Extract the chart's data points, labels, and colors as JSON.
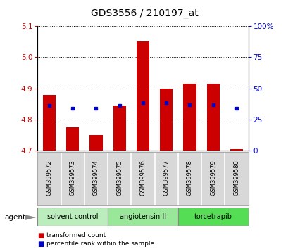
{
  "title": "GDS3556 / 210197_at",
  "samples": [
    "GSM399572",
    "GSM399573",
    "GSM399574",
    "GSM399575",
    "GSM399576",
    "GSM399577",
    "GSM399578",
    "GSM399579",
    "GSM399580"
  ],
  "bar_base": 4.7,
  "bar_tops": [
    4.88,
    4.775,
    4.75,
    4.845,
    5.05,
    4.9,
    4.915,
    4.915,
    4.705
  ],
  "percentile_values": [
    4.845,
    4.835,
    4.835,
    4.845,
    4.855,
    4.855,
    4.848,
    4.848,
    4.835
  ],
  "bar_color": "#cc0000",
  "dot_color": "#0000cc",
  "ylim_left": [
    4.7,
    5.1
  ],
  "ylim_right": [
    0,
    100
  ],
  "yticks_left": [
    4.7,
    4.8,
    4.9,
    5.0,
    5.1
  ],
  "yticks_right": [
    0,
    25,
    50,
    75,
    100
  ],
  "ytick_labels_right": [
    "0",
    "25",
    "50",
    "75",
    "100%"
  ],
  "groups": [
    {
      "label": "solvent control",
      "color": "#bbeebc",
      "indices": [
        0,
        1,
        2
      ]
    },
    {
      "label": "angiotensin II",
      "color": "#99e89a",
      "indices": [
        3,
        4,
        5
      ]
    },
    {
      "label": "torcetrapib",
      "color": "#55dd55",
      "indices": [
        6,
        7,
        8
      ]
    }
  ],
  "agent_label": "agent",
  "legend_items": [
    {
      "label": "transformed count",
      "color": "#cc0000"
    },
    {
      "label": "percentile rank within the sample",
      "color": "#0000cc"
    }
  ],
  "bar_width": 0.55,
  "tick_label_color_left": "#cc0000",
  "tick_label_color_right": "#0000cc",
  "grid_style": "dotted",
  "background_color": "#ffffff",
  "gray_color": "#d8d8d8"
}
